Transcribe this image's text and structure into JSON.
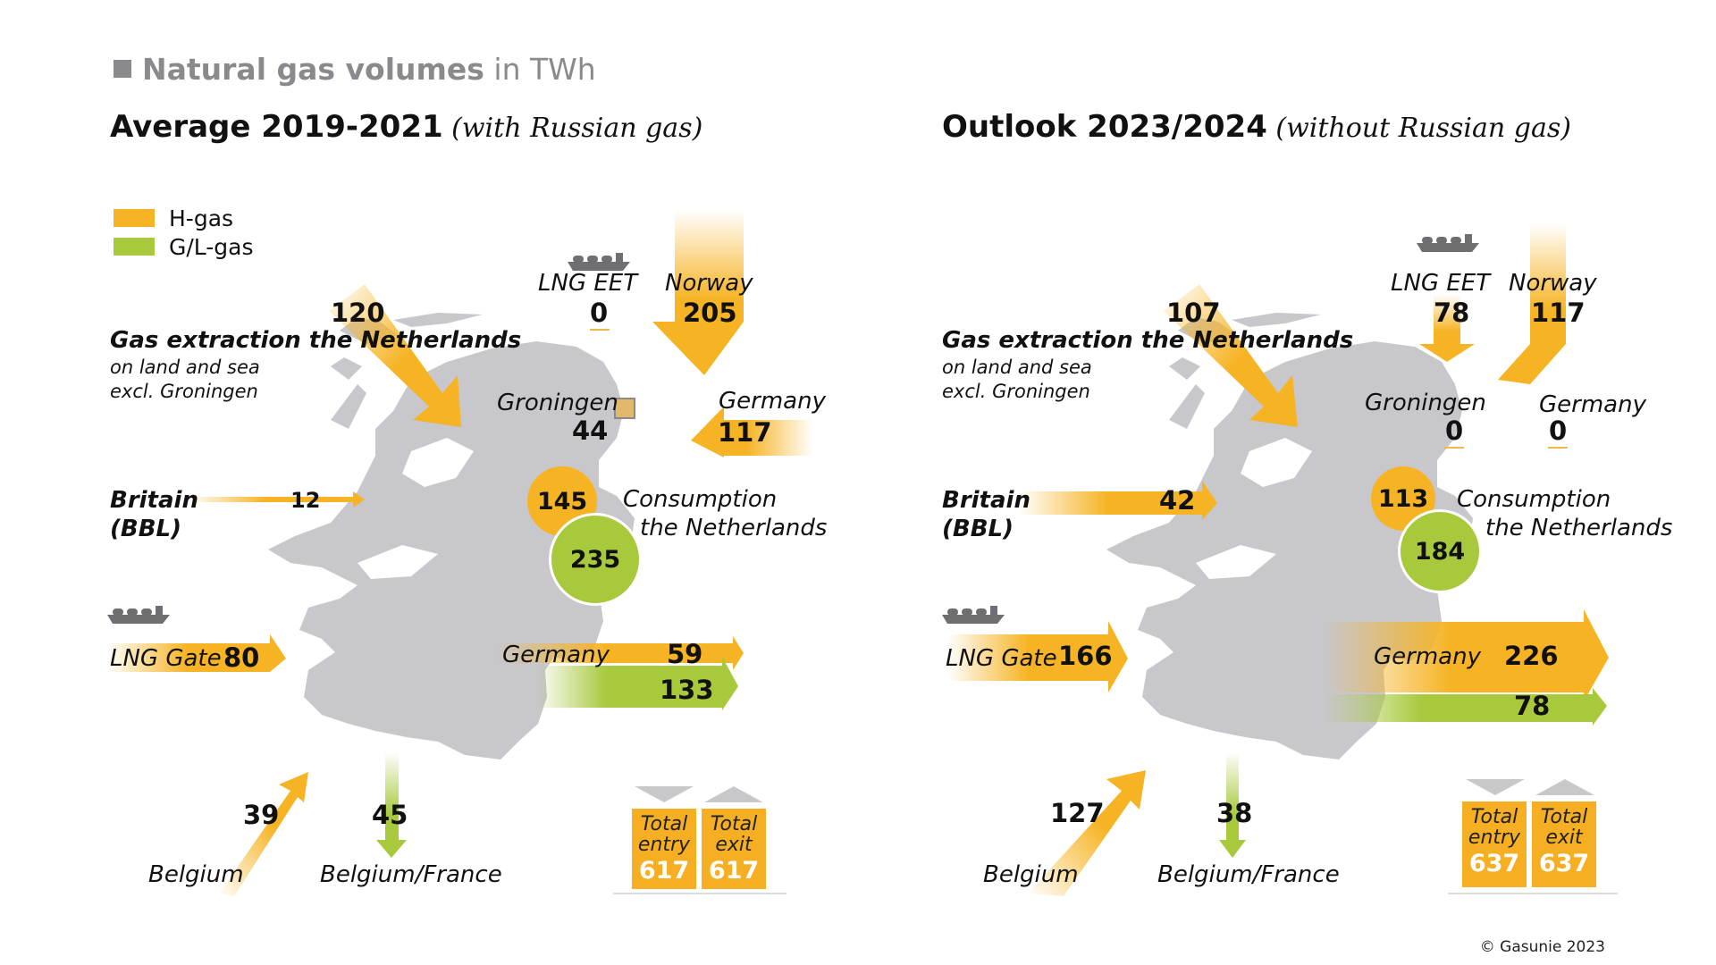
{
  "header": {
    "title_bold": "Natural gas volumes",
    "title_rest": " in TWh"
  },
  "legend": {
    "h_gas": "H-gas",
    "gl_gas": "G/L-gas",
    "h_color": "#f6b323",
    "gl_color": "#a7c93b"
  },
  "colors": {
    "map": "#c8c7cb",
    "h_gas": "#f6b323",
    "gl_gas": "#a7c93b",
    "total": "#f6ae22"
  },
  "left": {
    "title_bold": "Average 2019-2021",
    "title_italic": " (with Russian gas)",
    "extraction": {
      "label": "Gas extraction the Netherlands",
      "sub1": "on land and sea",
      "sub2": "excl. Groningen",
      "value": "120"
    },
    "lng_eet": {
      "label": "LNG EET",
      "value": "0"
    },
    "norway": {
      "label": "Norway",
      "value": "205"
    },
    "groningen": {
      "label": "Groningen",
      "value": "44"
    },
    "germany_in": {
      "label": "Germany",
      "value": "117"
    },
    "britain": {
      "label1": "Britain",
      "label2": "(BBL)",
      "value": "12"
    },
    "consumption": {
      "label1": "Consumption",
      "label2": "the Netherlands",
      "h": "145",
      "gl": "235"
    },
    "lng_gate": {
      "label": "LNG Gate",
      "value": "80"
    },
    "germany_out": {
      "label": "Germany",
      "h": "59",
      "gl": "133"
    },
    "belgium": {
      "label": "Belgium",
      "value": "39"
    },
    "belgium_france": {
      "label": "Belgium/France",
      "value": "45"
    },
    "total_entry": {
      "label1": "Total",
      "label2": "entry",
      "value": "617"
    },
    "total_exit": {
      "label1": "Total",
      "label2": "exit",
      "value": "617"
    }
  },
  "right": {
    "title_bold": "Outlook 2023/2024",
    "title_italic": " (without Russian gas)",
    "extraction": {
      "label": "Gas extraction the Netherlands",
      "sub1": "on land and sea",
      "sub2": "excl. Groningen",
      "value": "107"
    },
    "lng_eet": {
      "label": "LNG EET",
      "value": "78"
    },
    "norway": {
      "label": "Norway",
      "value": "117"
    },
    "groningen": {
      "label": "Groningen",
      "value": "0"
    },
    "germany_in": {
      "label": "Germany",
      "value": "0"
    },
    "britain": {
      "label1": "Britain",
      "label2": "(BBL)",
      "value": "42"
    },
    "consumption": {
      "label1": "Consumption",
      "label2": "the Netherlands",
      "h": "113",
      "gl": "184"
    },
    "lng_gate": {
      "label": "LNG Gate",
      "value": "166"
    },
    "germany_out": {
      "label": "Germany",
      "h": "226",
      "gl": "78"
    },
    "belgium": {
      "label": "Belgium",
      "value": "127"
    },
    "belgium_france": {
      "label": "Belgium/France",
      "value": "38"
    },
    "total_entry": {
      "label1": "Total",
      "label2": "entry",
      "value": "637"
    },
    "total_exit": {
      "label1": "Total",
      "label2": "exit",
      "value": "637"
    }
  },
  "copyright": "© Gasunie 2023"
}
